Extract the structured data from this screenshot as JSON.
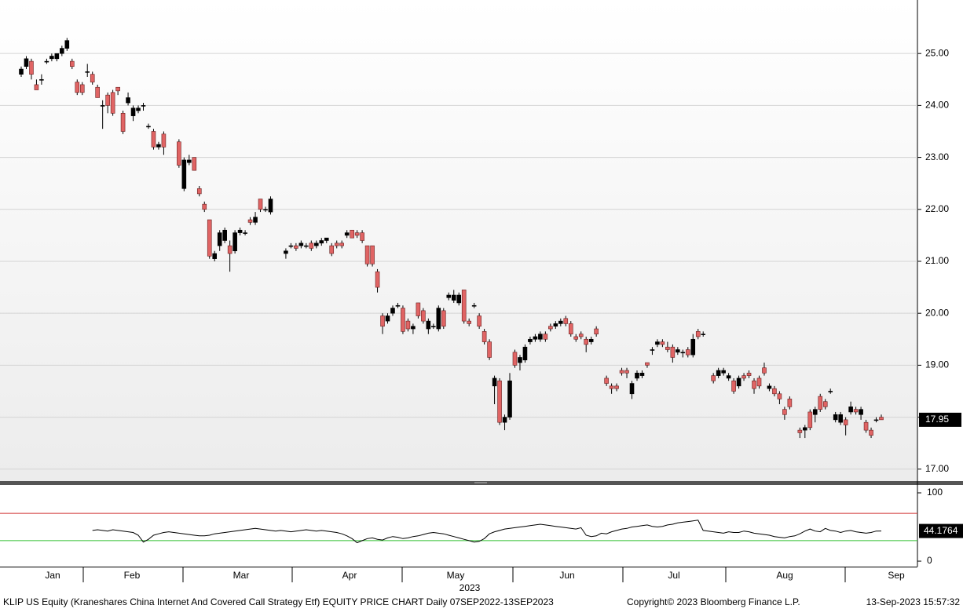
{
  "chart_data": {
    "type": "candlestick",
    "title": "KLIP US Equity (Kraneshares China Internet And Covered Call Strategy Etf) EQUITY PRICE CHART  Daily 07SEP2022-13SEP2023",
    "copyright": "Copyright© 2023 Bloomberg Finance L.P.",
    "timestamp": "13-Sep-2023 15:57:32",
    "x_labels": [
      "Jan",
      "Feb",
      "Mar",
      "Apr",
      "May",
      "Jun",
      "Jul",
      "Aug",
      "Sep"
    ],
    "year_label": "2023",
    "up_color": "#000000",
    "down_color": "#e06464",
    "ylim": [
      16.77,
      26.03
    ],
    "yticks": [
      {
        "value": 17,
        "label": "17.00"
      },
      {
        "value": 18,
        "label": "18.00"
      },
      {
        "value": 19,
        "label": "19.00"
      },
      {
        "value": 20,
        "label": "20.00"
      },
      {
        "value": 21,
        "label": "21.00"
      },
      {
        "value": 22,
        "label": "22.00"
      },
      {
        "value": 23,
        "label": "23.00"
      },
      {
        "value": 24,
        "label": "24.00"
      },
      {
        "value": 25,
        "label": "25.00"
      }
    ],
    "grid": true,
    "open": [
      24.6,
      24.75,
      24.85,
      24.4,
      24.5,
      24.85,
      24.9,
      24.9,
      25.0,
      25.1,
      24.85,
      24.45,
      24.4,
      24.65,
      24.6,
      24.35,
      24.0,
      24.2,
      24.25,
      24.35,
      23.85,
      24.05,
      23.8,
      23.9,
      24.0,
      23.6,
      23.5,
      23.2,
      23.45,
      null,
      null,
      23.3,
      22.4,
      22.9,
      23.0,
      22.4,
      22.1,
      21.8,
      21.05,
      21.3,
      21.4,
      21.3,
      21.2,
      21.55,
      21.55,
      21.8,
      21.75,
      22.2,
      22.0,
      21.95,
      null,
      null,
      21.15,
      21.3,
      21.3,
      21.3,
      21.3,
      21.35,
      21.3,
      21.35,
      21.4,
      21.3,
      21.35,
      21.35,
      21.5,
      21.6,
      21.55,
      21.55,
      21.3,
      21.3,
      20.8,
      19.95,
      19.85,
      20.0,
      20.15,
      20.1,
      19.85,
      19.7,
      20.2,
      20.05,
      19.7,
      19.75,
      19.7,
      20.05,
      20.3,
      20.25,
      20.2,
      20.45,
      19.85,
      20.15,
      19.95,
      19.65,
      19.45,
      18.6,
      18.7,
      17.9,
      18.0,
      19.25,
      19.05,
      19.1,
      19.45,
      19.5,
      19.5,
      19.6,
      19.75,
      19.75,
      19.8,
      19.9,
      19.8,
      19.55,
      19.6,
      19.5,
      19.45,
      19.7,
      null,
      18.75,
      18.6,
      18.6,
      18.9,
      18.9,
      18.45,
      18.75,
      18.8,
      19.05,
      19.3,
      19.4,
      19.45,
      19.35,
      19.35,
      19.25,
      19.25,
      19.3,
      19.2,
      19.65,
      19.6,
      null,
      18.8,
      18.8,
      18.85,
      18.75,
      18.7,
      18.6,
      18.8,
      18.85,
      18.7,
      18.75,
      18.95,
      18.55,
      18.55,
      18.45,
      18.15,
      18.35,
      null,
      17.75,
      17.75,
      18.1,
      18.05,
      18.4,
      18.3,
      18.5,
      17.95,
      17.9,
      17.95,
      18.1,
      18.15,
      18.05,
      17.9,
      17.75,
      17.95,
      18.0
    ],
    "high": [
      24.75,
      24.95,
      24.9,
      24.5,
      24.6,
      24.9,
      25.0,
      25.0,
      25.15,
      25.3,
      24.9,
      24.5,
      24.45,
      24.8,
      24.65,
      24.4,
      24.1,
      24.25,
      24.3,
      24.35,
      23.9,
      24.25,
      24.0,
      24.0,
      24.05,
      23.65,
      23.55,
      23.3,
      23.5,
      null,
      null,
      23.35,
      23.0,
      23.05,
      23.0,
      22.45,
      22.15,
      21.8,
      21.2,
      21.6,
      21.65,
      21.4,
      21.6,
      21.65,
      21.6,
      21.85,
      21.95,
      22.2,
      22.05,
      22.25,
      null,
      null,
      21.25,
      21.35,
      21.35,
      21.4,
      21.35,
      21.4,
      21.4,
      21.45,
      21.45,
      21.35,
      21.4,
      21.4,
      21.6,
      21.6,
      21.6,
      21.6,
      21.3,
      21.3,
      20.85,
      20.0,
      20.0,
      20.15,
      20.2,
      20.15,
      19.9,
      19.8,
      20.2,
      20.1,
      19.9,
      19.8,
      20.15,
      20.1,
      20.4,
      20.45,
      20.4,
      20.45,
      19.9,
      20.2,
      20.0,
      19.7,
      19.5,
      18.8,
      18.75,
      18.05,
      18.85,
      19.3,
      19.2,
      19.4,
      19.55,
      19.6,
      19.65,
      19.65,
      19.8,
      19.85,
      19.9,
      19.95,
      19.85,
      19.6,
      19.65,
      19.55,
      19.55,
      19.75,
      null,
      18.8,
      18.65,
      18.65,
      18.95,
      18.95,
      18.7,
      18.9,
      18.9,
      19.05,
      19.35,
      19.5,
      19.5,
      19.45,
      19.4,
      19.35,
      19.3,
      19.35,
      19.6,
      19.7,
      19.65,
      null,
      18.85,
      18.95,
      18.95,
      18.85,
      18.75,
      18.8,
      18.85,
      18.9,
      18.75,
      18.8,
      19.05,
      18.65,
      18.6,
      18.5,
      18.2,
      18.4,
      null,
      17.8,
      17.85,
      18.15,
      18.2,
      18.45,
      18.35,
      18.55,
      18.1,
      18.1,
      18.0,
      18.3,
      18.2,
      18.2,
      17.95,
      17.8,
      18.0,
      18.05
    ],
    "low": [
      24.55,
      24.7,
      24.5,
      24.3,
      24.4,
      24.8,
      24.85,
      24.85,
      24.95,
      25.05,
      24.7,
      24.2,
      24.2,
      24.55,
      24.4,
      24.15,
      23.55,
      23.85,
      23.8,
      24.2,
      23.45,
      24.0,
      23.7,
      23.85,
      23.9,
      23.55,
      23.15,
      23.15,
      23.05,
      null,
      null,
      22.8,
      22.35,
      22.85,
      22.75,
      22.25,
      21.95,
      21.05,
      21.0,
      21.2,
      21.35,
      20.8,
      21.15,
      21.5,
      21.5,
      21.7,
      21.7,
      21.95,
      21.95,
      21.9,
      null,
      null,
      21.05,
      21.25,
      21.2,
      21.25,
      21.25,
      21.2,
      21.25,
      21.3,
      21.35,
      21.1,
      21.25,
      21.25,
      21.45,
      21.45,
      21.45,
      21.35,
      20.9,
      20.9,
      20.4,
      19.6,
      19.8,
      19.95,
      20.1,
      19.6,
      19.65,
      19.6,
      19.9,
      19.8,
      19.6,
      19.7,
      19.65,
      19.7,
      20.25,
      20.2,
      20.15,
      19.8,
      19.75,
      20.1,
      19.7,
      19.4,
      19.1,
      18.25,
      17.85,
      17.75,
      17.95,
      18.95,
      18.9,
      19.05,
      19.4,
      19.45,
      19.45,
      19.45,
      19.65,
      19.7,
      19.75,
      19.75,
      19.55,
      19.45,
      19.5,
      19.25,
      19.4,
      19.55,
      null,
      18.6,
      18.45,
      18.5,
      18.8,
      18.75,
      18.35,
      18.7,
      18.75,
      18.95,
      19.2,
      19.35,
      19.35,
      19.25,
      19.05,
      19.2,
      19.15,
      19.15,
      19.15,
      19.5,
      19.55,
      null,
      18.65,
      18.75,
      18.8,
      18.7,
      18.45,
      18.55,
      18.7,
      18.75,
      18.45,
      18.55,
      18.8,
      18.5,
      18.4,
      18.25,
      17.95,
      18.15,
      null,
      17.6,
      17.6,
      17.75,
      17.9,
      18.1,
      18.15,
      18.45,
      17.9,
      17.85,
      17.65,
      18.05,
      18.05,
      17.95,
      17.7,
      17.6,
      17.9,
      17.95
    ],
    "close": [
      24.7,
      24.9,
      24.6,
      24.3,
      24.5,
      24.85,
      24.95,
      25.0,
      25.1,
      25.25,
      24.75,
      24.25,
      24.25,
      24.65,
      24.45,
      24.15,
      24.0,
      24.0,
      23.85,
      24.28,
      23.5,
      24.15,
      23.95,
      23.95,
      24.0,
      23.6,
      23.2,
      23.25,
      23.2,
      null,
      null,
      22.85,
      22.95,
      22.95,
      22.75,
      22.3,
      22.0,
      21.1,
      21.15,
      21.55,
      21.6,
      21.15,
      21.55,
      21.6,
      21.55,
      21.75,
      21.85,
      22.0,
      22.0,
      22.2,
      null,
      null,
      21.2,
      21.3,
      21.25,
      21.35,
      21.3,
      21.25,
      21.35,
      21.4,
      21.45,
      21.15,
      21.3,
      21.3,
      21.55,
      21.45,
      21.5,
      21.4,
      20.95,
      20.95,
      20.5,
      19.75,
      19.95,
      20.1,
      20.15,
      19.65,
      19.7,
      19.75,
      19.95,
      19.85,
      19.85,
      19.75,
      20.1,
      19.75,
      20.35,
      20.35,
      20.35,
      19.85,
      19.8,
      20.15,
      19.75,
      19.45,
      19.15,
      18.75,
      17.9,
      18.0,
      18.7,
      19.0,
      19.15,
      19.35,
      19.5,
      19.55,
      19.6,
      19.5,
      19.7,
      19.8,
      19.85,
      19.8,
      19.6,
      19.5,
      19.55,
      19.4,
      19.5,
      19.6,
      null,
      18.65,
      18.55,
      18.55,
      18.85,
      18.85,
      18.65,
      18.85,
      18.85,
      19.0,
      19.3,
      19.45,
      19.4,
      19.3,
      19.15,
      19.3,
      19.25,
      19.2,
      19.5,
      19.55,
      19.6,
      null,
      18.7,
      18.9,
      18.9,
      18.8,
      18.5,
      18.75,
      18.75,
      18.8,
      18.55,
      18.6,
      18.85,
      18.6,
      18.45,
      18.35,
      18.05,
      18.2,
      null,
      17.7,
      17.8,
      17.8,
      18.15,
      18.15,
      18.2,
      18.5,
      18.05,
      18.05,
      17.85,
      18.2,
      18.1,
      18.15,
      17.75,
      17.65,
      17.95,
      17.95
    ],
    "rsi": {
      "ylim": [
        -8,
        111.5
      ],
      "yticks": [
        0,
        100
      ],
      "upper": 70,
      "lower": 30,
      "upper_color": "#d03030",
      "lower_color": "#30c030",
      "color": "#000000",
      "values": [
        45,
        46,
        45,
        44,
        46,
        45,
        44,
        43,
        42,
        38,
        28,
        32,
        38,
        40,
        42,
        43,
        42,
        41,
        40,
        39,
        38,
        37,
        37,
        38,
        40,
        41,
        42,
        43,
        44,
        45,
        46,
        47,
        48,
        47,
        46,
        45,
        44,
        45,
        44,
        43,
        44,
        45,
        46,
        45,
        44,
        45,
        44,
        43,
        42,
        40,
        37,
        33,
        27,
        30,
        33,
        34,
        32,
        31,
        34,
        36,
        35,
        33,
        34,
        36,
        37,
        39,
        41,
        42,
        41,
        40,
        38,
        36,
        34,
        32,
        30,
        28,
        29,
        33,
        40,
        43,
        45,
        47,
        48,
        49,
        50,
        51,
        52,
        53,
        54,
        53,
        52,
        51,
        50,
        49,
        48,
        47,
        49,
        38,
        36,
        37,
        41,
        40,
        43,
        45,
        47,
        48,
        50,
        51,
        52,
        53,
        51,
        50,
        51,
        53,
        54,
        56,
        57,
        58,
        59,
        60,
        45,
        44,
        43,
        42,
        41,
        43,
        42,
        42,
        44,
        43,
        41,
        40,
        39,
        38,
        36,
        35,
        34,
        36,
        37,
        40,
        44,
        47,
        44,
        43,
        48,
        45,
        44,
        42,
        44,
        45,
        43,
        42,
        41,
        42,
        44,
        44.1764
      ]
    }
  }
}
